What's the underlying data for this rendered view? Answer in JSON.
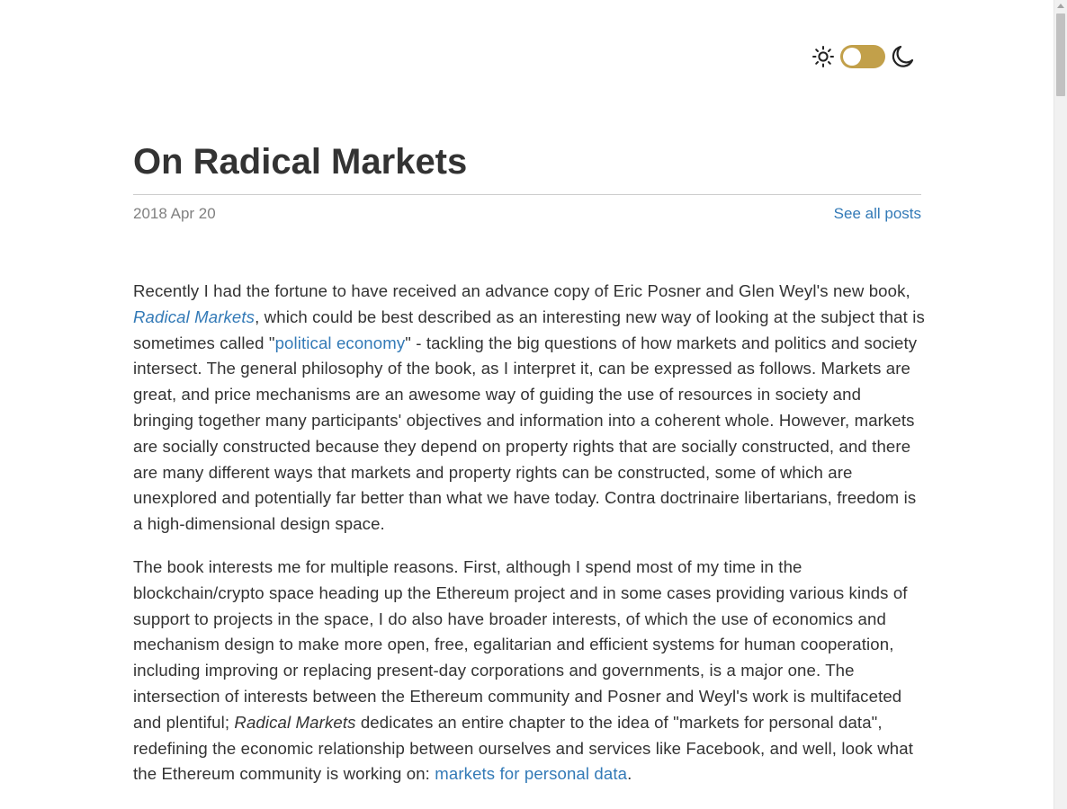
{
  "theme": {
    "sun_icon": "sun-icon",
    "moon_icon": "moon-icon",
    "toggle_color": "#c2a04a",
    "mode": "light"
  },
  "post": {
    "title": "On Radical Markets",
    "date": "2018 Apr 20",
    "all_posts_label": "See all posts"
  },
  "p1": {
    "t1": "Recently I had the fortune to have received an advance copy of Eric Posner and Glen Weyl's new book, ",
    "link1": "Radical Markets",
    "t2": ", which could be best described as an interesting new way of looking at the subject that is sometimes called \"",
    "link2": "political economy",
    "t3": "\" - tackling the big questions of how markets and politics and society intersect. The general philosophy of the book, as I interpret it, can be expressed as follows. Markets are great, and price mechanisms are an awesome way of guiding the use of resources in society and bringing together many participants' objectives and information into a coherent whole. However, markets are socially constructed because they depend on property rights that are socially constructed, and there are many different ways that markets and property rights can be constructed, some of which are unexplored and potentially far better than what we have today. Contra doctrinaire libertarians, freedom is a high-dimensional design space."
  },
  "p2": {
    "t1": "The book interests me for multiple reasons. First, although I spend most of my time in the blockchain/crypto space heading up the Ethereum project and in some cases providing various kinds of support to projects in the space, I do also have broader interests, of which the use of economics and mechanism design to make more open, free, egalitarian and efficient systems for human cooperation, including improving or replacing present-day corporations and governments, is a major one. The intersection of interests between the Ethereum community and Posner and Weyl's work is multifaceted and plentiful; ",
    "em1": "Radical Markets",
    "t2": " dedicates an entire chapter to the idea of \"markets for personal data\", redefining the economic relationship between ourselves and services like Facebook, and well, look what the Ethereum community is working on: ",
    "link1": "markets for personal data",
    "t3": "."
  }
}
